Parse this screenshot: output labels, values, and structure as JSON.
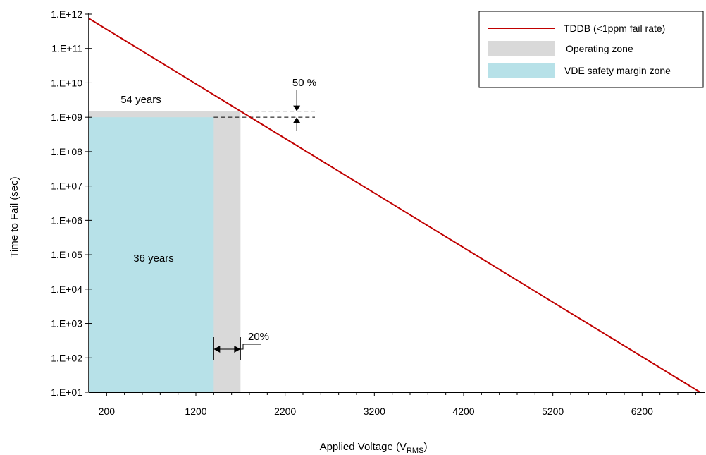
{
  "chart_data": {
    "type": "line",
    "title": "",
    "xlabel": "Applied Voltage (V",
    "xlabel_sub": "RMS",
    "xlabel_close": ")",
    "ylabel": "Time to Fail (sec)",
    "x_scale": "linear",
    "y_scale": "log",
    "xlim": [
      0,
      6900
    ],
    "ylim": [
      10,
      1000000000000
    ],
    "grid": false,
    "legend_position": "top-right",
    "x_ticks": [
      200,
      1200,
      2200,
      3200,
      4200,
      5200,
      6200
    ],
    "x_tick_labels": [
      "200",
      "1200",
      "2200",
      "3200",
      "4200",
      "5200",
      "6200"
    ],
    "y_ticks": [
      10,
      100,
      1000,
      10000,
      100000,
      1000000,
      10000000,
      100000000,
      1000000000,
      10000000000,
      100000000000,
      1000000000000
    ],
    "y_tick_labels": [
      "1.E+01",
      "1.E+02",
      "1.E+03",
      "1.E+04",
      "1.E+05",
      "1.E+06",
      "1.E+07",
      "1.E+08",
      "1.E+09",
      "1.E+10",
      "1.E+11",
      "1.E+12"
    ],
    "series": [
      {
        "name": "TDDB (<1ppm fail rate)",
        "color": "#c00000",
        "x": [
          0,
          6850
        ],
        "y": [
          750000000000,
          10
        ]
      }
    ],
    "zones": [
      {
        "name": "Operating zone",
        "color": "#d9d9d9",
        "x_range": [
          0,
          1700
        ],
        "y_range": [
          10,
          1500000000
        ]
      },
      {
        "name": "VDE safety margin zone",
        "color": "#b7e1e8",
        "x_range": [
          0,
          1400
        ],
        "y_range": [
          10,
          1000000000
        ]
      }
    ],
    "annotations": [
      {
        "text": "54 years",
        "x": 600,
        "y": 2500000000
      },
      {
        "text": "36 years",
        "x": 600,
        "y": 100000
      },
      {
        "text": "50 %",
        "x": 2330,
        "y": 8000000000
      },
      {
        "text": "20%",
        "x": 1940,
        "y": 800
      }
    ]
  }
}
